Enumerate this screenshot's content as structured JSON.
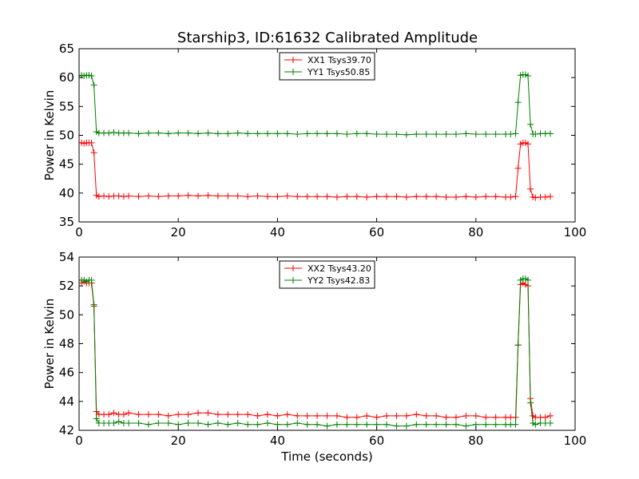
{
  "figure": {
    "title": "Starship3, ID:61632 Calibrated Amplitude"
  },
  "chart_data": [
    {
      "type": "line",
      "marker": "+",
      "xlabel": "",
      "ylabel": "Power in Kelvin",
      "xlim": [
        0,
        100
      ],
      "ylim": [
        35,
        65
      ],
      "xticks": [
        "0",
        "20",
        "40",
        "60",
        "80",
        "100"
      ],
      "yticks": [
        "35",
        "40",
        "45",
        "50",
        "55",
        "60",
        "65"
      ],
      "grid": false,
      "legend_position": "top-center",
      "series": [
        {
          "name": "XX1 Tsys39.70",
          "color": "#ff0000",
          "x": [
            0,
            0.5,
            1,
            1.5,
            2,
            2.5,
            3,
            3.5,
            4,
            5,
            6,
            7,
            8,
            9,
            10,
            12,
            14,
            16,
            18,
            20,
            22,
            24,
            26,
            28,
            30,
            32,
            34,
            36,
            38,
            40,
            42,
            44,
            46,
            48,
            50,
            52,
            54,
            56,
            58,
            60,
            62,
            64,
            66,
            68,
            70,
            72,
            74,
            76,
            78,
            80,
            82,
            84,
            86,
            87,
            88,
            88.5,
            89,
            89.5,
            90,
            90.5,
            91,
            91.5,
            92,
            93,
            94,
            95
          ],
          "y": [
            48.7,
            48.7,
            48.6,
            48.7,
            48.7,
            48.7,
            47.0,
            39.6,
            39.4,
            39.5,
            39.4,
            39.5,
            39.5,
            39.4,
            39.5,
            39.4,
            39.5,
            39.4,
            39.5,
            39.5,
            39.6,
            39.5,
            39.6,
            39.5,
            39.5,
            39.5,
            39.4,
            39.5,
            39.4,
            39.4,
            39.5,
            39.4,
            39.4,
            39.4,
            39.4,
            39.3,
            39.4,
            39.4,
            39.3,
            39.4,
            39.4,
            39.4,
            39.3,
            39.4,
            39.4,
            39.4,
            39.3,
            39.3,
            39.4,
            39.3,
            39.4,
            39.4,
            39.3,
            39.3,
            39.4,
            44.3,
            48.5,
            48.7,
            48.7,
            48.5,
            40.7,
            39.3,
            39.2,
            39.3,
            39.3,
            39.4
          ]
        },
        {
          "name": "YY1 Tsys50.85",
          "color": "#008000",
          "x": [
            0,
            0.5,
            1,
            1.5,
            2,
            2.5,
            3,
            3.5,
            4,
            5,
            6,
            7,
            8,
            9,
            10,
            12,
            14,
            16,
            18,
            20,
            22,
            24,
            26,
            28,
            30,
            32,
            34,
            36,
            38,
            40,
            42,
            44,
            46,
            48,
            50,
            52,
            54,
            56,
            58,
            60,
            62,
            64,
            66,
            68,
            70,
            72,
            74,
            76,
            78,
            80,
            82,
            84,
            86,
            87,
            88,
            88.5,
            89,
            89.5,
            90,
            90.5,
            91,
            91.5,
            92,
            93,
            94,
            95
          ],
          "y": [
            60.3,
            60.4,
            60.3,
            60.4,
            60.4,
            60.3,
            58.7,
            50.6,
            50.4,
            50.4,
            50.4,
            50.5,
            50.4,
            50.4,
            50.4,
            50.3,
            50.4,
            50.4,
            50.3,
            50.4,
            50.4,
            50.3,
            50.4,
            50.3,
            50.3,
            50.4,
            50.3,
            50.3,
            50.3,
            50.3,
            50.3,
            50.2,
            50.3,
            50.3,
            50.3,
            50.3,
            50.2,
            50.3,
            50.3,
            50.2,
            50.2,
            50.2,
            50.1,
            50.2,
            50.2,
            50.2,
            50.2,
            50.2,
            50.3,
            50.2,
            50.2,
            50.2,
            50.2,
            50.2,
            50.3,
            55.7,
            60.4,
            60.5,
            60.5,
            60.3,
            51.9,
            50.2,
            50.2,
            50.3,
            50.3,
            50.3
          ]
        }
      ]
    },
    {
      "type": "line",
      "marker": "+",
      "xlabel": "Time (seconds)",
      "ylabel": "Power in Kelvin",
      "xlim": [
        0,
        100
      ],
      "ylim": [
        42,
        54
      ],
      "xticks": [
        "0",
        "20",
        "40",
        "60",
        "80",
        "100"
      ],
      "yticks": [
        "42",
        "44",
        "46",
        "48",
        "50",
        "52",
        "54"
      ],
      "grid": false,
      "legend_position": "top-center",
      "series": [
        {
          "name": "XX2 Tsys43.20",
          "color": "#ff0000",
          "x": [
            0,
            0.5,
            1,
            1.5,
            2,
            2.5,
            3,
            3.5,
            4,
            5,
            6,
            7,
            8,
            9,
            10,
            12,
            14,
            16,
            18,
            20,
            22,
            24,
            26,
            28,
            30,
            32,
            34,
            36,
            38,
            40,
            42,
            44,
            46,
            48,
            50,
            52,
            54,
            56,
            58,
            60,
            62,
            64,
            66,
            68,
            70,
            72,
            74,
            76,
            78,
            80,
            82,
            84,
            86,
            87,
            88,
            88.5,
            89,
            89.5,
            90,
            90.5,
            91,
            91.5,
            92,
            93,
            94,
            95
          ],
          "y": [
            52.2,
            52.2,
            52.3,
            52.2,
            52.2,
            52.2,
            50.6,
            43.3,
            43.1,
            43.1,
            43.1,
            43.2,
            43.1,
            43.1,
            43.2,
            43.1,
            43.1,
            43.1,
            43.0,
            43.1,
            43.1,
            43.2,
            43.2,
            43.1,
            43.1,
            43.1,
            43.1,
            43.0,
            43.1,
            43.0,
            43.1,
            43.0,
            43.0,
            43.0,
            43.0,
            43.0,
            42.9,
            42.9,
            43.0,
            42.9,
            43.0,
            43.0,
            43.0,
            43.1,
            43.0,
            43.0,
            42.9,
            42.9,
            43.0,
            43.0,
            42.9,
            42.9,
            42.9,
            42.9,
            42.9,
            47.9,
            52.1,
            52.2,
            52.1,
            52.0,
            44.2,
            43.0,
            42.9,
            42.9,
            42.9,
            43.0
          ]
        },
        {
          "name": "YY2 Tsys42.83",
          "color": "#008000",
          "x": [
            0,
            0.5,
            1,
            1.5,
            2,
            2.5,
            3,
            3.5,
            4,
            5,
            6,
            7,
            8,
            9,
            10,
            12,
            14,
            16,
            18,
            20,
            22,
            24,
            26,
            28,
            30,
            32,
            34,
            36,
            38,
            40,
            42,
            44,
            46,
            48,
            50,
            52,
            54,
            56,
            58,
            60,
            62,
            64,
            66,
            68,
            70,
            72,
            74,
            76,
            78,
            80,
            82,
            84,
            86,
            87,
            88,
            88.5,
            89,
            89.5,
            90,
            90.5,
            91,
            91.5,
            92,
            93,
            94,
            95
          ],
          "y": [
            52.4,
            52.4,
            52.4,
            52.3,
            52.4,
            52.4,
            50.7,
            42.8,
            42.5,
            42.5,
            42.5,
            42.5,
            42.6,
            42.5,
            42.5,
            42.5,
            42.4,
            42.5,
            42.5,
            42.4,
            42.5,
            42.5,
            42.4,
            42.5,
            42.4,
            42.5,
            42.4,
            42.4,
            42.5,
            42.4,
            42.4,
            42.5,
            42.4,
            42.4,
            42.3,
            42.4,
            42.4,
            42.4,
            42.4,
            42.4,
            42.4,
            42.3,
            42.3,
            42.4,
            42.4,
            42.4,
            42.4,
            42.4,
            42.3,
            42.4,
            42.4,
            42.4,
            42.4,
            42.4,
            42.4,
            47.9,
            52.4,
            52.5,
            52.5,
            52.4,
            43.9,
            42.5,
            42.4,
            42.5,
            42.5,
            42.5
          ]
        }
      ]
    }
  ]
}
